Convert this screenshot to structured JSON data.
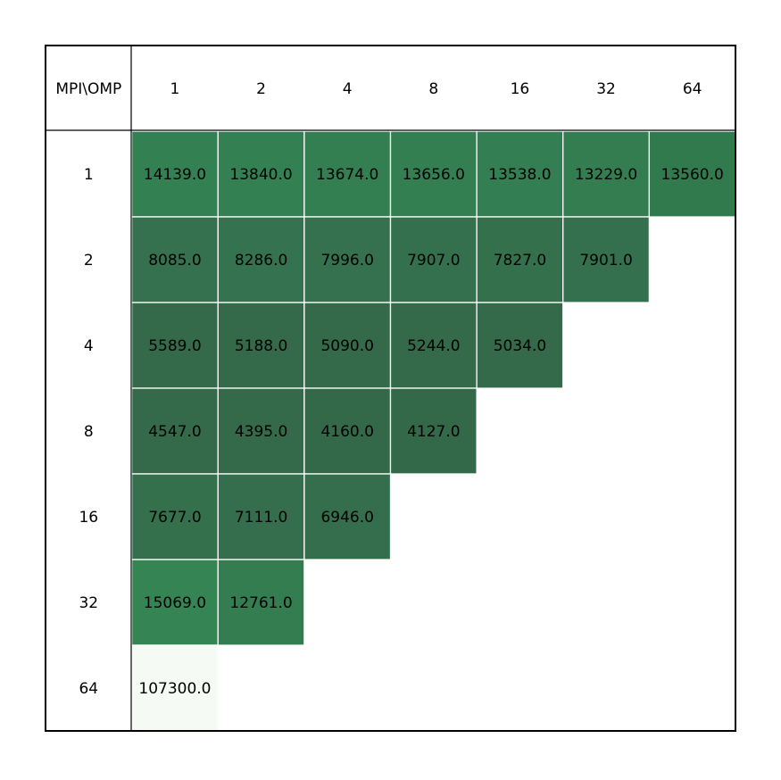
{
  "table": {
    "header": [
      "MPI\\OMP",
      "1",
      "2",
      "4",
      "8",
      "16",
      "32",
      "64"
    ],
    "rows": [
      {
        "label": "1",
        "cells": [
          "14139.0",
          "13840.0",
          "13674.0",
          "13656.0",
          "13538.0",
          "13229.0",
          "13560.0"
        ],
        "colors": [
          "#338153",
          "#338053",
          "#337f52",
          "#337f52",
          "#337e52",
          "#337d51",
          "#307a4e"
        ]
      },
      {
        "label": "2",
        "cells": [
          "8085.0",
          "8286.0",
          "7996.0",
          "7907.0",
          "7827.0",
          "7901.0"
        ],
        "colors": [
          "#35714e",
          "#35724f",
          "#35714e",
          "#35704e",
          "#35704d",
          "#35704e"
        ]
      },
      {
        "label": "4",
        "cells": [
          "5589.0",
          "5188.0",
          "5090.0",
          "5244.0",
          "5034.0"
        ],
        "colors": [
          "#346a4a",
          "#346949",
          "#346949",
          "#346949",
          "#346949"
        ]
      },
      {
        "label": "8",
        "cells": [
          "4547.0",
          "4395.0",
          "4160.0",
          "4127.0"
        ],
        "colors": [
          "#346949",
          "#346949",
          "#336848",
          "#336848"
        ]
      },
      {
        "label": "16",
        "cells": [
          "7677.0",
          "7111.0",
          "6946.0"
        ],
        "colors": [
          "#35704d",
          "#356e4c",
          "#356e4c"
        ]
      },
      {
        "label": "32",
        "cells": [
          "15069.0",
          "12761.0"
        ],
        "colors": [
          "#358554",
          "#347d51"
        ]
      },
      {
        "label": "64",
        "cells": [
          "107300.0"
        ],
        "colors": [
          "#f5faf4"
        ]
      }
    ]
  }
}
